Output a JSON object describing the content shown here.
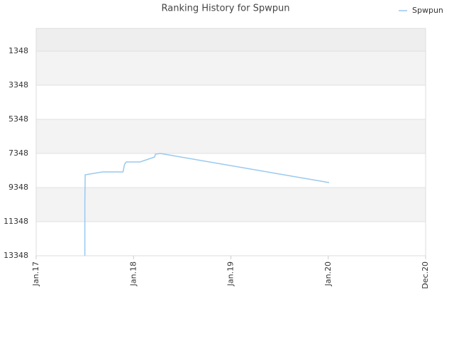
{
  "chart_data": {
    "type": "line",
    "title": "Ranking History for Spwpun",
    "x": [
      6.0,
      6.0,
      6.04,
      8.2,
      10.7,
      10.9,
      11.1,
      12.8,
      14.6,
      14.7,
      15.3,
      36.1
    ],
    "series": [
      {
        "name": "Spwpun",
        "color": "#99c9ef",
        "values": [
          13348,
          10140,
          8598,
          8431,
          8431,
          7973,
          7848,
          7848,
          7556,
          7390,
          7348,
          9056
        ]
      }
    ],
    "xlim": [
      0,
      48
    ],
    "xticks": [
      {
        "value": 0,
        "label": "Jan.17"
      },
      {
        "value": 12,
        "label": "Jan.18"
      },
      {
        "value": 24,
        "label": "Jan.19"
      },
      {
        "value": 36,
        "label": "Jan.20"
      },
      {
        "value": 48,
        "label": "Dec.20"
      }
    ],
    "ylim": [
      13348,
      15
    ],
    "yticks": [
      1348,
      3348,
      5348,
      7348,
      9348,
      11348,
      13348
    ],
    "grid": true,
    "legend": "top-right"
  }
}
